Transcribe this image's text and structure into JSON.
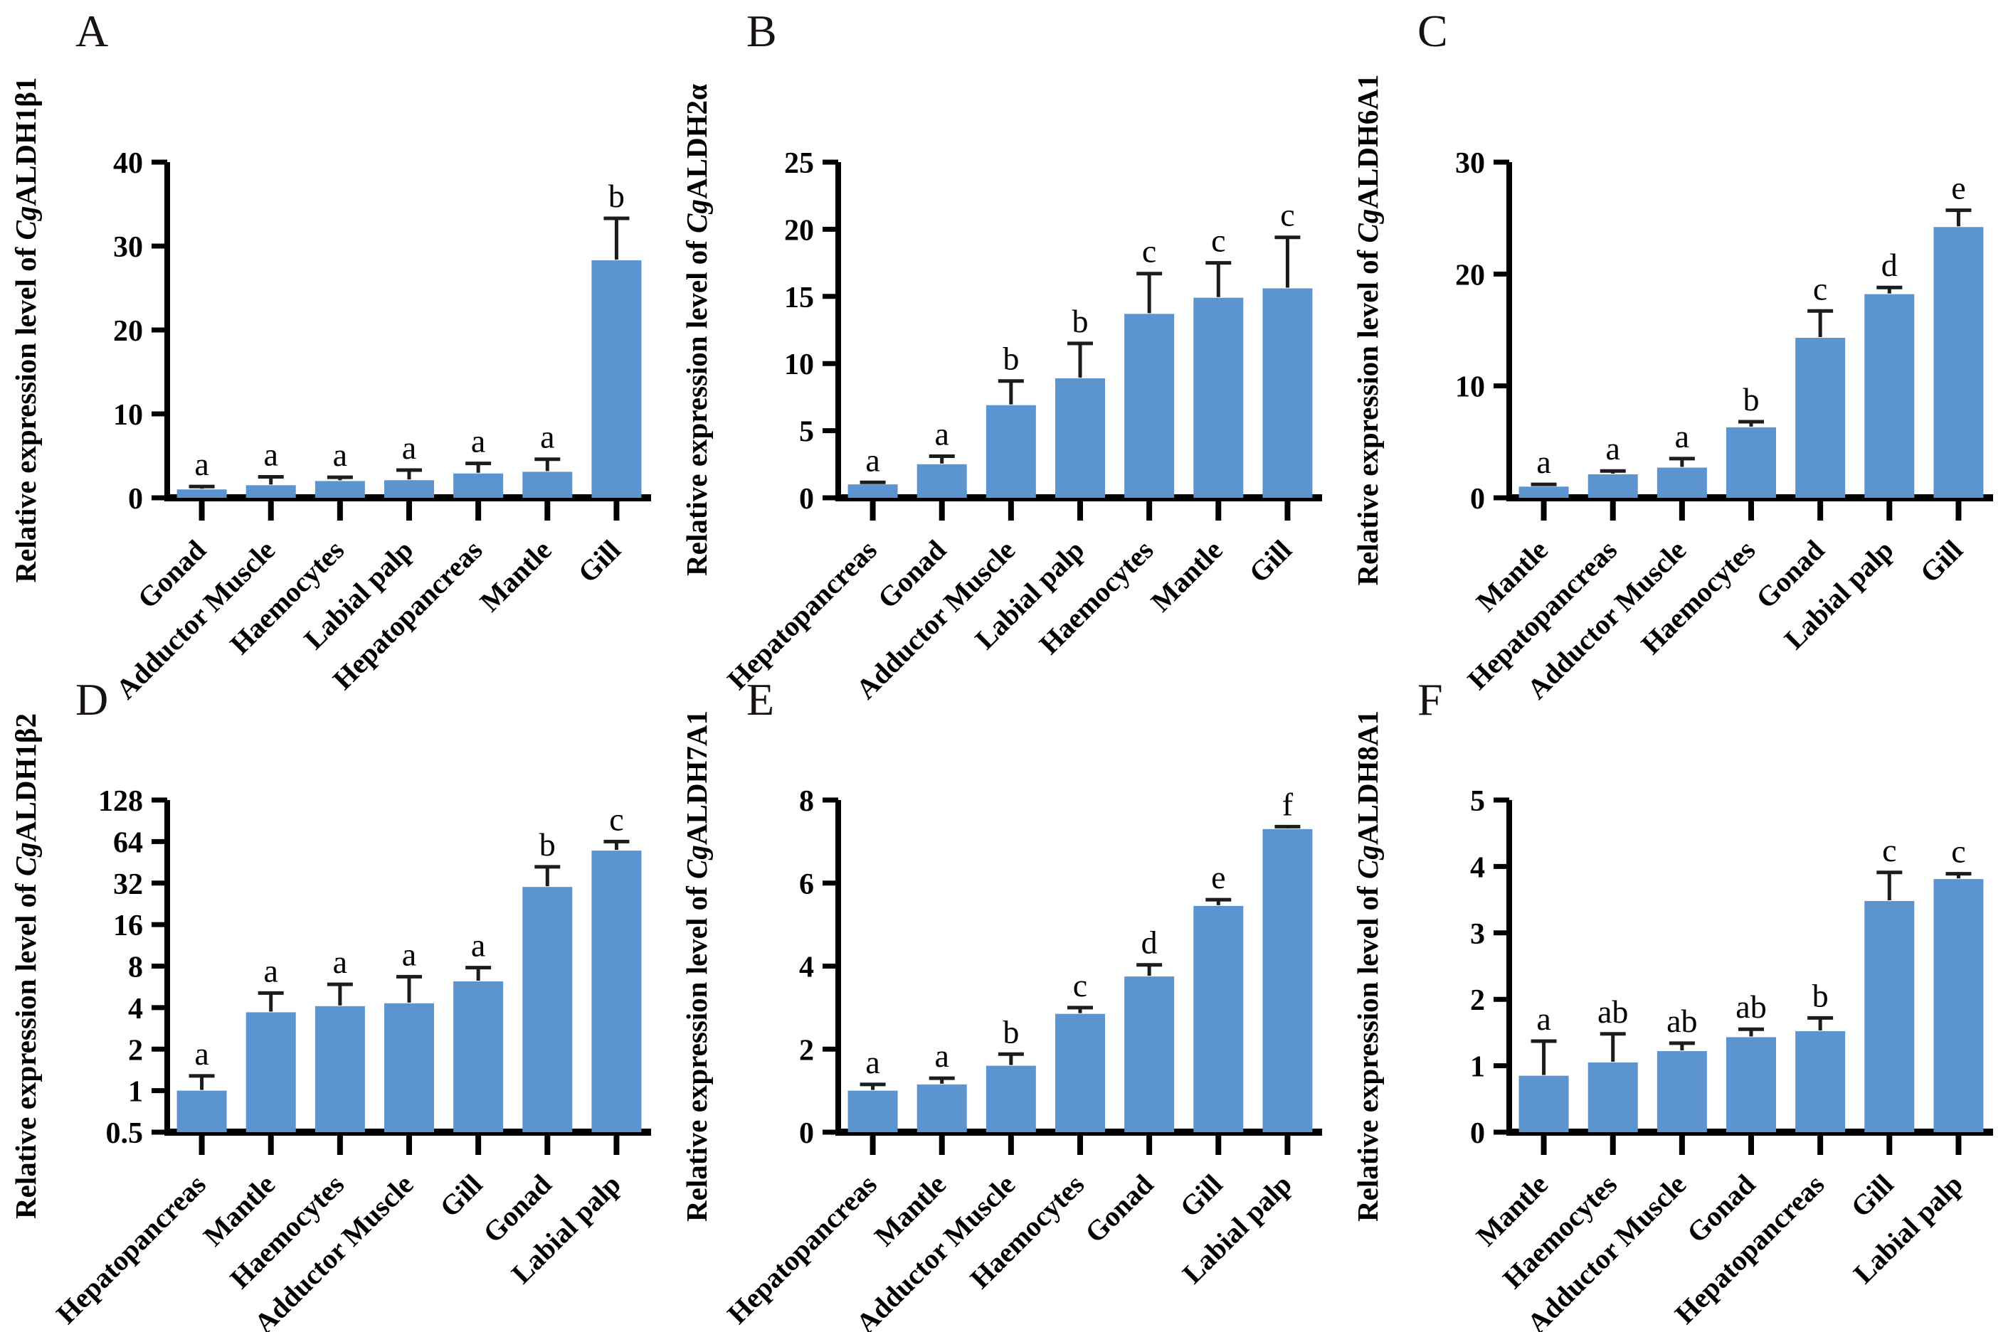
{
  "colors": {
    "bar": "#5b94ce",
    "axis": "#000000",
    "error_bar": "#1c1c1c",
    "text": "#000000",
    "background": "#ffffff"
  },
  "chart_data": [
    {
      "type": "bar",
      "panel_label": "A",
      "ylabel": "Relative expression level of CgALDH1β1",
      "ylabel_prefix": "Relative expression level of ",
      "gene_italic": "Cg",
      "gene_rest": "ALDH1β1",
      "yscale": "linear",
      "ylim": [
        0,
        40
      ],
      "yticks": [
        0,
        10,
        20,
        30,
        40
      ],
      "categories": [
        "Gonad",
        "Adductor Muscle",
        "Haemocytes",
        "Labial palp",
        "Hepatopancreas",
        "Mantle",
        "Gill"
      ],
      "values": [
        1.0,
        1.5,
        2.0,
        2.1,
        2.9,
        3.1,
        28.3
      ],
      "errors": [
        0.35,
        1.0,
        0.45,
        1.2,
        1.2,
        1.5,
        5.0
      ],
      "sig_letters": [
        "a",
        "a",
        "a",
        "a",
        "a",
        "a",
        "b"
      ],
      "grid": false,
      "legend": "none"
    },
    {
      "type": "bar",
      "panel_label": "B",
      "ylabel": "Relative expression level of CgALDH2α",
      "ylabel_prefix": "Relative expression level of ",
      "gene_italic": "Cg",
      "gene_rest": "ALDH2α",
      "yscale": "linear",
      "ylim": [
        0,
        25
      ],
      "yticks": [
        0,
        5,
        10,
        15,
        20,
        25
      ],
      "categories": [
        "Hepatopancreas",
        "Gonad",
        "Adductor Muscle",
        "Labial palp",
        "Haemocytes",
        "Mantle",
        "Gill"
      ],
      "values": [
        1.0,
        2.5,
        6.9,
        8.9,
        13.7,
        14.9,
        15.6
      ],
      "errors": [
        0.15,
        0.6,
        1.8,
        2.6,
        3.0,
        2.6,
        3.8
      ],
      "sig_letters": [
        "a",
        "a",
        "b",
        "b",
        "c",
        "c",
        "c"
      ],
      "grid": false,
      "legend": "none"
    },
    {
      "type": "bar",
      "panel_label": "C",
      "ylabel": "Relative expression level of CgALDH6A1",
      "ylabel_prefix": "Relative expression level of ",
      "gene_italic": "Cg",
      "gene_rest": "ALDH6A1",
      "yscale": "linear",
      "ylim": [
        0,
        30
      ],
      "yticks": [
        0,
        10,
        20,
        30
      ],
      "categories": [
        "Mantle",
        "Hepatopancreas",
        "Adductor Muscle",
        "Haemocytes",
        "Gonad",
        "Labial palp",
        "Gill"
      ],
      "values": [
        1.0,
        2.1,
        2.7,
        6.3,
        14.3,
        18.2,
        24.2
      ],
      "errors": [
        0.2,
        0.3,
        0.8,
        0.5,
        2.4,
        0.6,
        1.5
      ],
      "sig_letters": [
        "a",
        "a",
        "a",
        "b",
        "c",
        "d",
        "e"
      ],
      "grid": false,
      "legend": "none"
    },
    {
      "type": "bar",
      "panel_label": "D",
      "ylabel": "Relative expression level of CgALDH1β2",
      "ylabel_prefix": "Relative expression level of ",
      "gene_italic": "Cg",
      "gene_rest": "ALDH1β2",
      "yscale": "log2",
      "ylim": [
        0.5,
        128
      ],
      "yticks": [
        0.5,
        1,
        2,
        4,
        8,
        16,
        32,
        64,
        128
      ],
      "categories": [
        "Hepatopancreas",
        "Mantle",
        "Haemocytes",
        "Adductor Muscle",
        "Gill",
        "Gonad",
        "Labial palp"
      ],
      "values": [
        1.0,
        3.7,
        4.1,
        4.3,
        6.2,
        30,
        55
      ],
      "errors": [
        0.28,
        1.4,
        1.8,
        2.4,
        1.6,
        12,
        9
      ],
      "sig_letters": [
        "a",
        "a",
        "a",
        "a",
        "a",
        "b",
        "c"
      ],
      "grid": false,
      "legend": "none"
    },
    {
      "type": "bar",
      "panel_label": "E",
      "ylabel": "Relative expression level of CgALDH7A1",
      "ylabel_prefix": "Relative expression level of ",
      "gene_italic": "Cg",
      "gene_rest": "ALDH7A1",
      "yscale": "linear",
      "ylim": [
        0,
        8
      ],
      "yticks": [
        0,
        2,
        4,
        6,
        8
      ],
      "categories": [
        "Hepatopancreas",
        "Mantle",
        "Adductor Muscle",
        "Haemocytes",
        "Gonad",
        "Gill",
        "Labial palp"
      ],
      "values": [
        1.0,
        1.15,
        1.6,
        2.85,
        3.75,
        5.45,
        7.3
      ],
      "errors": [
        0.15,
        0.15,
        0.28,
        0.15,
        0.28,
        0.15,
        0.06
      ],
      "sig_letters": [
        "a",
        "a",
        "b",
        "c",
        "d",
        "e",
        "f"
      ],
      "grid": false,
      "legend": "none"
    },
    {
      "type": "bar",
      "panel_label": "F",
      "ylabel": "Relative expression level of CgALDH8A1",
      "ylabel_prefix": "Relative expression level of ",
      "gene_italic": "Cg",
      "gene_rest": "ALDH8A1",
      "yscale": "linear",
      "ylim": [
        0,
        5
      ],
      "yticks": [
        0,
        1,
        2,
        3,
        4,
        5
      ],
      "categories": [
        "Mantle",
        "Haemocytes",
        "Adductor Muscle",
        "Gonad",
        "Hepatopancreas",
        "Gill",
        "Labial palp"
      ],
      "values": [
        0.85,
        1.05,
        1.22,
        1.43,
        1.52,
        3.48,
        3.81
      ],
      "errors": [
        0.52,
        0.43,
        0.12,
        0.12,
        0.2,
        0.43,
        0.08
      ],
      "sig_letters": [
        "a",
        "ab",
        "ab",
        "ab",
        "b",
        "c",
        "c"
      ],
      "grid": false,
      "legend": "none"
    }
  ]
}
